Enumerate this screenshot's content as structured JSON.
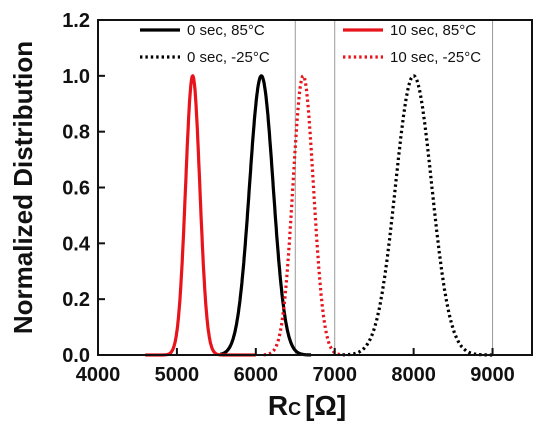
{
  "chart_data": {
    "type": "line",
    "ylabel": "Normalized Distribution",
    "xlabel_main": "R",
    "xlabel_sub": "C",
    "xlabel_unit": "[Ω]",
    "xlim": [
      4000,
      9500
    ],
    "ylim": [
      0,
      1.2
    ],
    "xticks": [
      4000,
      5000,
      6000,
      7000,
      8000,
      9000
    ],
    "yticks": [
      0.0,
      0.2,
      0.4,
      0.6,
      0.8,
      1.0,
      1.2
    ],
    "xtick_labels": [
      "4000",
      "5000",
      "6000",
      "7000",
      "8000",
      "9000"
    ],
    "ytick_labels": [
      "0.0",
      "0.2",
      "0.4",
      "0.6",
      "0.8",
      "1.0",
      "1.2"
    ],
    "reference_lines_x": [
      6500,
      7000,
      9000
    ],
    "grid": false,
    "legend_position": "top",
    "series": [
      {
        "name": "0 sec, 85°C",
        "color": "#000000",
        "style": "solid",
        "mean": 6070,
        "sigma": 150,
        "x_range": [
          5550,
          6700
        ],
        "peak": 1.0
      },
      {
        "name": "10 sec, 85°C",
        "color": "#e8141c",
        "style": "solid",
        "mean": 5200,
        "sigma": 90,
        "x_range": [
          4600,
          6000
        ],
        "peak": 1.0
      },
      {
        "name": "0 sec, -25°C",
        "color": "#000000",
        "style": "dotted",
        "mean": 8000,
        "sigma": 230,
        "x_range": [
          7100,
          9000
        ],
        "peak": 1.0
      },
      {
        "name": "10 sec, -25°C",
        "color": "#e8141c",
        "style": "dotted",
        "mean": 6600,
        "sigma": 130,
        "x_range": [
          6100,
          7100
        ],
        "peak": 1.0
      }
    ]
  }
}
